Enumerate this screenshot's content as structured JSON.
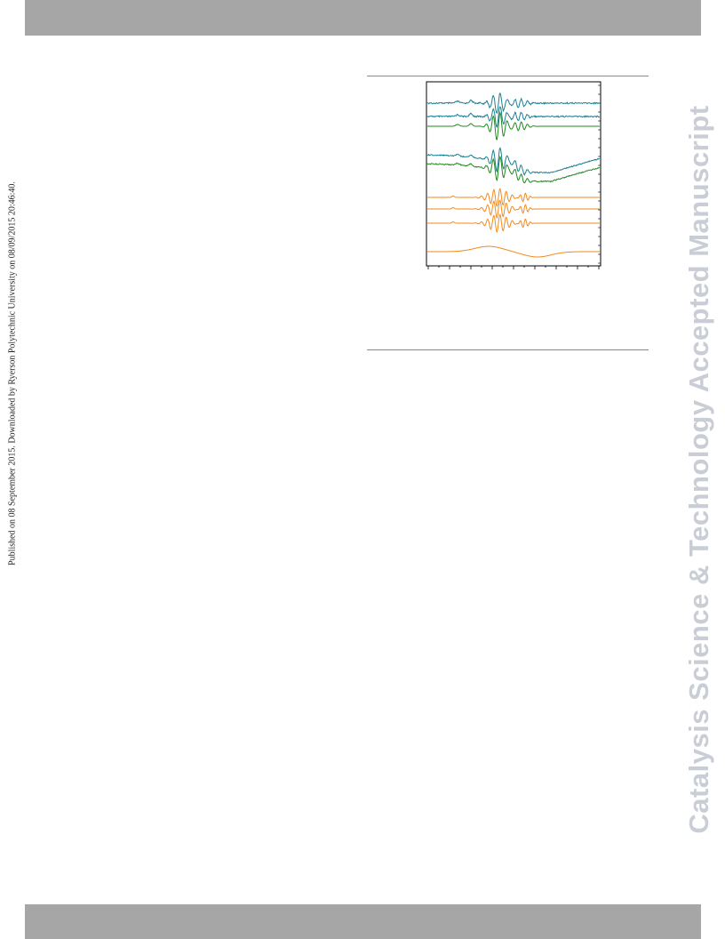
{
  "side_note": "Published on 08 September 2015. Downloaded by Ryerson Polytechnic University on 08/09/2015 20:46:40.",
  "watermark": "Catalysis Science & Technology Accepted Manuscript",
  "colors": {
    "banner": "#a6a6a6",
    "teal": "#1b7f93",
    "green": "#1f8a1f",
    "orange": "#f28a1c",
    "watermark": "#c9cdd6"
  },
  "figure": {
    "traces": [
      {
        "color": "teal",
        "style": "noisy"
      },
      {
        "color": "teal",
        "style": "noisy"
      },
      {
        "color": "green",
        "style": "deep"
      },
      {
        "color": "teal",
        "style": "rise"
      },
      {
        "color": "green",
        "style": "rise"
      },
      {
        "color": "orange",
        "style": "osc"
      },
      {
        "color": "orange",
        "style": "osc"
      },
      {
        "color": "orange",
        "style": "osc"
      },
      {
        "color": "orange",
        "style": "smooth"
      }
    ]
  }
}
